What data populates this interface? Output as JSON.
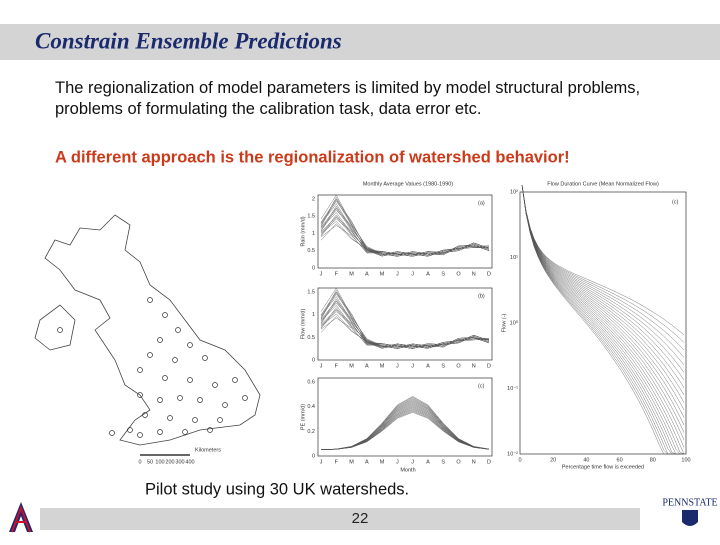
{
  "header": {
    "title": "Constrain Ensemble Predictions"
  },
  "body": {
    "paragraph": "The regionalization of model parameters is limited by model structural problems, problems of formulating the calibration task, data error etc.",
    "highlight": "A different approach is the regionalization of watershed behavior!",
    "caption": "Pilot study using 30 UK watersheds."
  },
  "figure": {
    "map": {
      "scale_label": "Kilometers",
      "scale_ticks": [
        "0",
        "50",
        "100",
        "200",
        "300",
        "400"
      ]
    },
    "monthly": {
      "title": "Monthly Average Values (1980-1990)",
      "months": [
        "J",
        "F",
        "M",
        "A",
        "M",
        "J",
        "J",
        "A",
        "S",
        "O",
        "N",
        "D"
      ],
      "x_label": "Month",
      "panels": [
        {
          "tag": "(a)",
          "y_label": "Rain (mm/d)",
          "yticks": [
            "2",
            "1.5",
            "1",
            "0.5",
            "0"
          ]
        },
        {
          "tag": "(b)",
          "y_label": "Flow (mm/d)",
          "yticks": [
            "1.5",
            "1",
            "0.5",
            "0"
          ]
        },
        {
          "tag": "(c)",
          "y_label": "PE (mm/d)",
          "yticks": [
            "0.6",
            "0.4",
            "0.2",
            "0"
          ]
        }
      ]
    },
    "fdc": {
      "title": "Flow Duration Curve (Mean Normalized Flow)",
      "tag": "(c)",
      "y_label": "Flow (-)",
      "x_label": "Percentage time flow is exceeded",
      "yticks": [
        "10²",
        "10¹",
        "10⁰",
        "10⁻¹",
        "10⁻²"
      ],
      "xticks": [
        "0",
        "20",
        "40",
        "60",
        "80",
        "100"
      ]
    }
  },
  "footer": {
    "page": "22",
    "logo_right": "PENNSTATE"
  }
}
